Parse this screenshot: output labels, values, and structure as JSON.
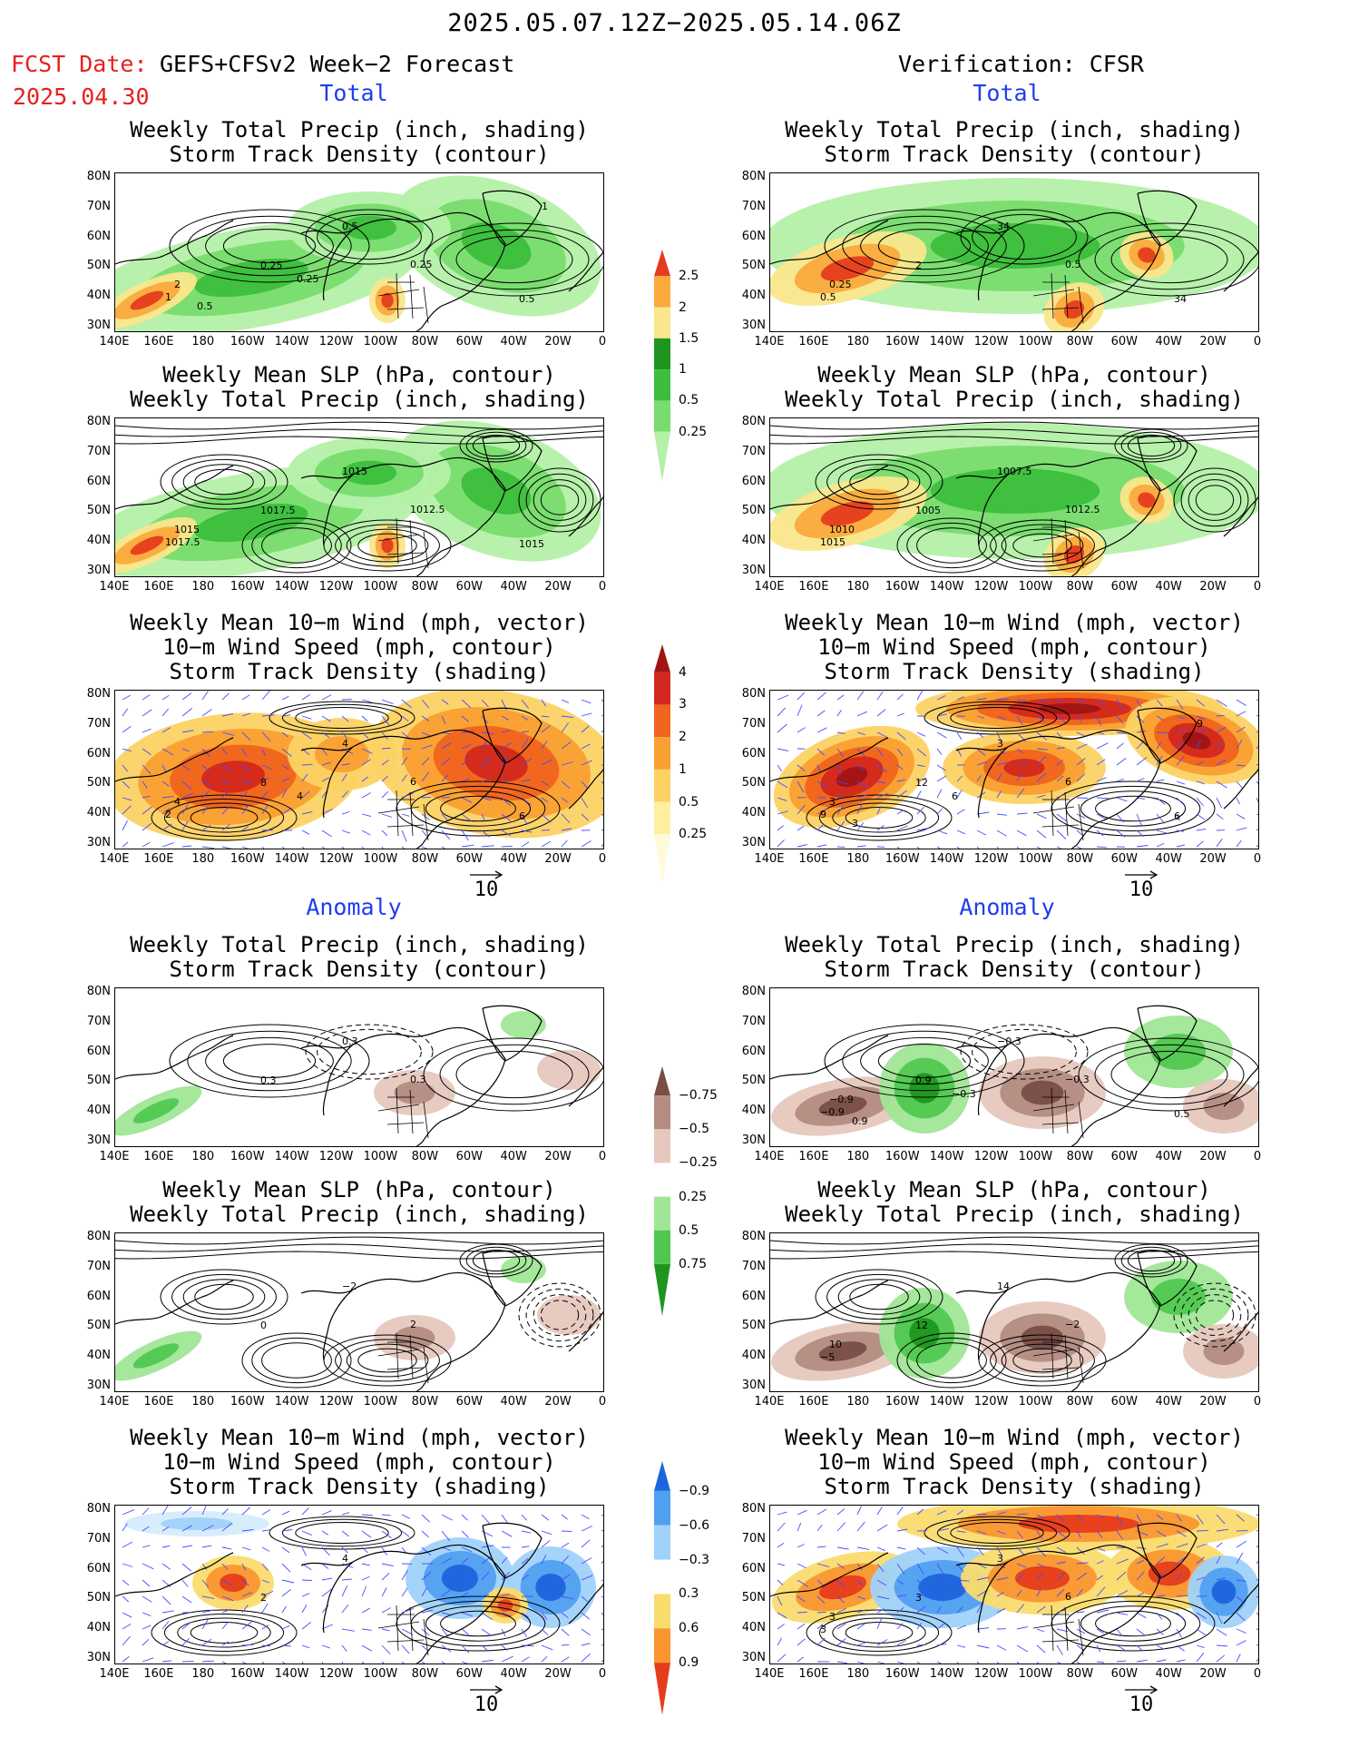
{
  "header": {
    "period": "2025.05.07.12Z−2025.05.14.06Z",
    "fcst_label": "FCST Date:",
    "fcst_model": "GEFS+CFSv2 Week−2 Forecast",
    "fcst_date": "2025.04.30",
    "verification": "Verification: CFSR"
  },
  "sections": {
    "total": "Total",
    "anomaly": "Anomaly"
  },
  "titles": {
    "precip": [
      "Weekly Total Precip (inch, shading)",
      "Storm Track Density (contour)"
    ],
    "slp": [
      "Weekly Mean SLP (hPa, contour)",
      "Weekly Total Precip (inch, shading)"
    ],
    "wind": [
      "Weekly Mean 10−m Wind (mph, vector)",
      "10−m Wind Speed (mph, contour)",
      "Storm Track Density (shading)"
    ]
  },
  "axes": {
    "lat_ticks": [
      "80N",
      "70N",
      "60N",
      "50N",
      "40N",
      "30N"
    ],
    "lon_ticks": [
      "140E",
      "160E",
      "180",
      "160W",
      "140W",
      "120W",
      "100W",
      "80W",
      "60W",
      "40W",
      "20W",
      "0"
    ]
  },
  "vector_ref": "10",
  "colorbars": {
    "precip_total": {
      "labels": [
        "0.25",
        "0.5",
        "1",
        "1.5",
        "2",
        "2.5"
      ],
      "colors": [
        "#b4f0a8",
        "#78dc6e",
        "#3cbe3c",
        "#1e961e",
        "#fae68c",
        "#faaa3c",
        "#e63c1e"
      ]
    },
    "storm_total": {
      "labels": [
        "0.25",
        "0.5",
        "1",
        "2",
        "3",
        "4"
      ],
      "colors": [
        "#fffadc",
        "#fff0a0",
        "#fcd264",
        "#faa032",
        "#f0641e",
        "#d2281e",
        "#a01414"
      ]
    },
    "precip_anom": {
      "labels": [
        "0.75",
        "0.5",
        "0.25",
        "−0.25",
        "−0.5",
        "−0.75"
      ],
      "colors": [
        "#1e961e",
        "#50c850",
        "#a0e696",
        "#ffffff",
        "#e6c8be",
        "#b48c82",
        "#784e46"
      ]
    },
    "storm_anom": {
      "labels": [
        "0.9",
        "0.6",
        "0.3",
        "−0.3",
        "−0.6",
        "−0.9"
      ],
      "colors": [
        "#e63c1e",
        "#fa9632",
        "#fadc6e",
        "#ffffff",
        "#a0d2fa",
        "#50a0f0",
        "#1e64dc"
      ]
    }
  },
  "panel_labels": {
    "fc_precip": [
      "0.5",
      "0.25",
      "0.25",
      "2",
      "1",
      "0.5",
      "0.25",
      "0.5",
      "1"
    ],
    "fc_slp": [
      "1015",
      "1017.5",
      "1012.5",
      "1015",
      "1017.5",
      "1015"
    ],
    "fc_wind": [
      "4",
      "8",
      "6",
      "4",
      "2",
      "6",
      "4"
    ],
    "ob_precip": [
      "34",
      "2",
      "0.5",
      "0.25",
      "0.5",
      "34"
    ],
    "ob_slp": [
      "1007.5",
      "1005",
      "1012.5",
      "1010",
      "1015"
    ],
    "ob_wind": [
      "3",
      "12",
      "6",
      "3",
      "9",
      "6",
      "6",
      "3",
      "9"
    ],
    "fca_precip": [
      "0.3",
      "0.3",
      "0.3"
    ],
    "fca_slp": [
      "−2",
      "0",
      "2"
    ],
    "fca_wind": [
      "4",
      "2"
    ],
    "oba_precip": [
      "−0.3",
      "0.9",
      "−0.3",
      "−0.9",
      "−0.9",
      "0.5",
      "−0.3",
      "0.9"
    ],
    "oba_slp": [
      "14",
      "12",
      "−2",
      "10",
      "−5"
    ],
    "oba_wind": [
      "3",
      "3",
      "6",
      "3",
      "3"
    ]
  },
  "chart_data": [
    {
      "type": "heatmap",
      "panel": "forecast-total-precip",
      "title": "Weekly Total Precip (inch, shading) / Storm Track Density (contour)",
      "lat_range": [
        "30N",
        "80N"
      ],
      "lon_range": [
        "140E",
        "0"
      ],
      "shading_levels": [
        0.25,
        0.5,
        1,
        1.5,
        2,
        2.5
      ],
      "contour_labels": [
        0.5,
        0.25,
        0.25,
        2,
        1,
        0.5,
        0.25,
        0.5,
        1
      ]
    },
    {
      "type": "heatmap",
      "panel": "forecast-total-slp",
      "title": "Weekly Mean SLP (hPa, contour) / Weekly Total Precip (inch, shading)",
      "contour_labels": [
        1015,
        1017.5,
        1012.5,
        1015,
        1017.5,
        1015
      ]
    },
    {
      "type": "heatmap",
      "panel": "forecast-total-wind",
      "title": "Weekly Mean 10-m Wind / Wind Speed / Storm Track Density",
      "shading_levels": [
        0.25,
        0.5,
        1,
        2,
        3,
        4
      ],
      "contour_labels": [
        4,
        8,
        6,
        4,
        2,
        6,
        4
      ],
      "vector_reference": 10
    },
    {
      "type": "heatmap",
      "panel": "verification-total-precip",
      "contour_labels": [
        34,
        2,
        0.5,
        0.25,
        0.5,
        34
      ]
    },
    {
      "type": "heatmap",
      "panel": "verification-total-slp",
      "contour_labels": [
        1007.5,
        1005,
        1012.5,
        1010,
        1015
      ]
    },
    {
      "type": "heatmap",
      "panel": "verification-total-wind",
      "contour_labels": [
        3,
        12,
        6,
        3,
        9,
        6,
        6,
        3,
        9
      ],
      "vector_reference": 10
    },
    {
      "type": "heatmap",
      "panel": "forecast-anomaly-precip",
      "shading_levels": [
        -0.75,
        -0.5,
        -0.25,
        0.25,
        0.5,
        0.75
      ],
      "contour_labels": [
        0.3,
        0.3,
        0.3
      ]
    },
    {
      "type": "heatmap",
      "panel": "forecast-anomaly-slp",
      "contour_labels": [
        -2,
        0,
        2
      ]
    },
    {
      "type": "heatmap",
      "panel": "forecast-anomaly-wind",
      "shading_levels": [
        -0.9,
        -0.6,
        -0.3,
        0.3,
        0.6,
        0.9
      ],
      "contour_labels": [
        4,
        2
      ],
      "vector_reference": 10
    },
    {
      "type": "heatmap",
      "panel": "verification-anomaly-precip",
      "contour_labels": [
        -0.3,
        0.9,
        -0.3,
        -0.9,
        -0.9,
        0.5,
        -0.3,
        0.9
      ]
    },
    {
      "type": "heatmap",
      "panel": "verification-anomaly-slp",
      "contour_labels": [
        14,
        12,
        -2,
        10,
        -5
      ]
    },
    {
      "type": "heatmap",
      "panel": "verification-anomaly-wind",
      "contour_labels": [
        3,
        3,
        6,
        3,
        3
      ],
      "vector_reference": 10
    }
  ]
}
